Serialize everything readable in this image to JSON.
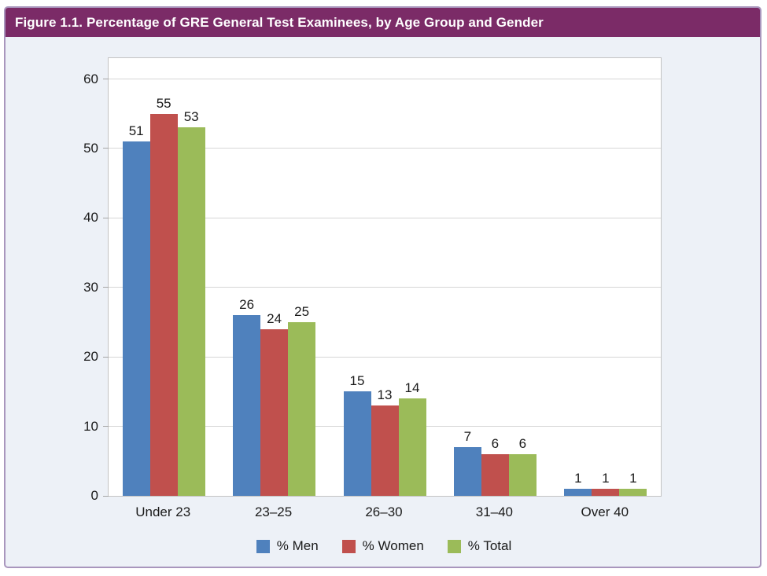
{
  "figure": {
    "title": "Figure 1.1. Percentage of GRE General Test Examinees, by Age Group and Gender"
  },
  "chart_data": {
    "type": "bar",
    "title": "Figure 1.1. Percentage of GRE General Test Examinees, by Age Group and Gender",
    "categories": [
      "Under 23",
      "23–25",
      "26–30",
      "31–40",
      "Over 40"
    ],
    "series": [
      {
        "name": "% Men",
        "color": "#4f81bd",
        "values": [
          51,
          26,
          15,
          7,
          1
        ]
      },
      {
        "name": "% Women",
        "color": "#c0504d",
        "values": [
          55,
          24,
          13,
          6,
          1
        ]
      },
      {
        "name": "% Total",
        "color": "#9bbb59",
        "values": [
          53,
          25,
          14,
          6,
          1
        ]
      }
    ],
    "xlabel": "",
    "ylabel": "",
    "ylim": [
      0,
      63
    ],
    "y_axis": {
      "min": 0,
      "max": 60,
      "tick_interval": 10,
      "ticks": [
        0,
        10,
        20,
        30,
        40,
        50,
        60
      ]
    },
    "grid": true,
    "data_labels": true,
    "legend_position": "bottom"
  },
  "style": {
    "header_bg": "#7b2b67",
    "header_text": "#ffffff",
    "body_bg": "#edf1f7",
    "frame_border": "#a996bd",
    "plot_bg": "#ffffff",
    "plot_border": "#c3c3c3",
    "gridline": "#d6d6d6",
    "tick": "#a6a6a6",
    "label_color": "#1a1a1a"
  }
}
